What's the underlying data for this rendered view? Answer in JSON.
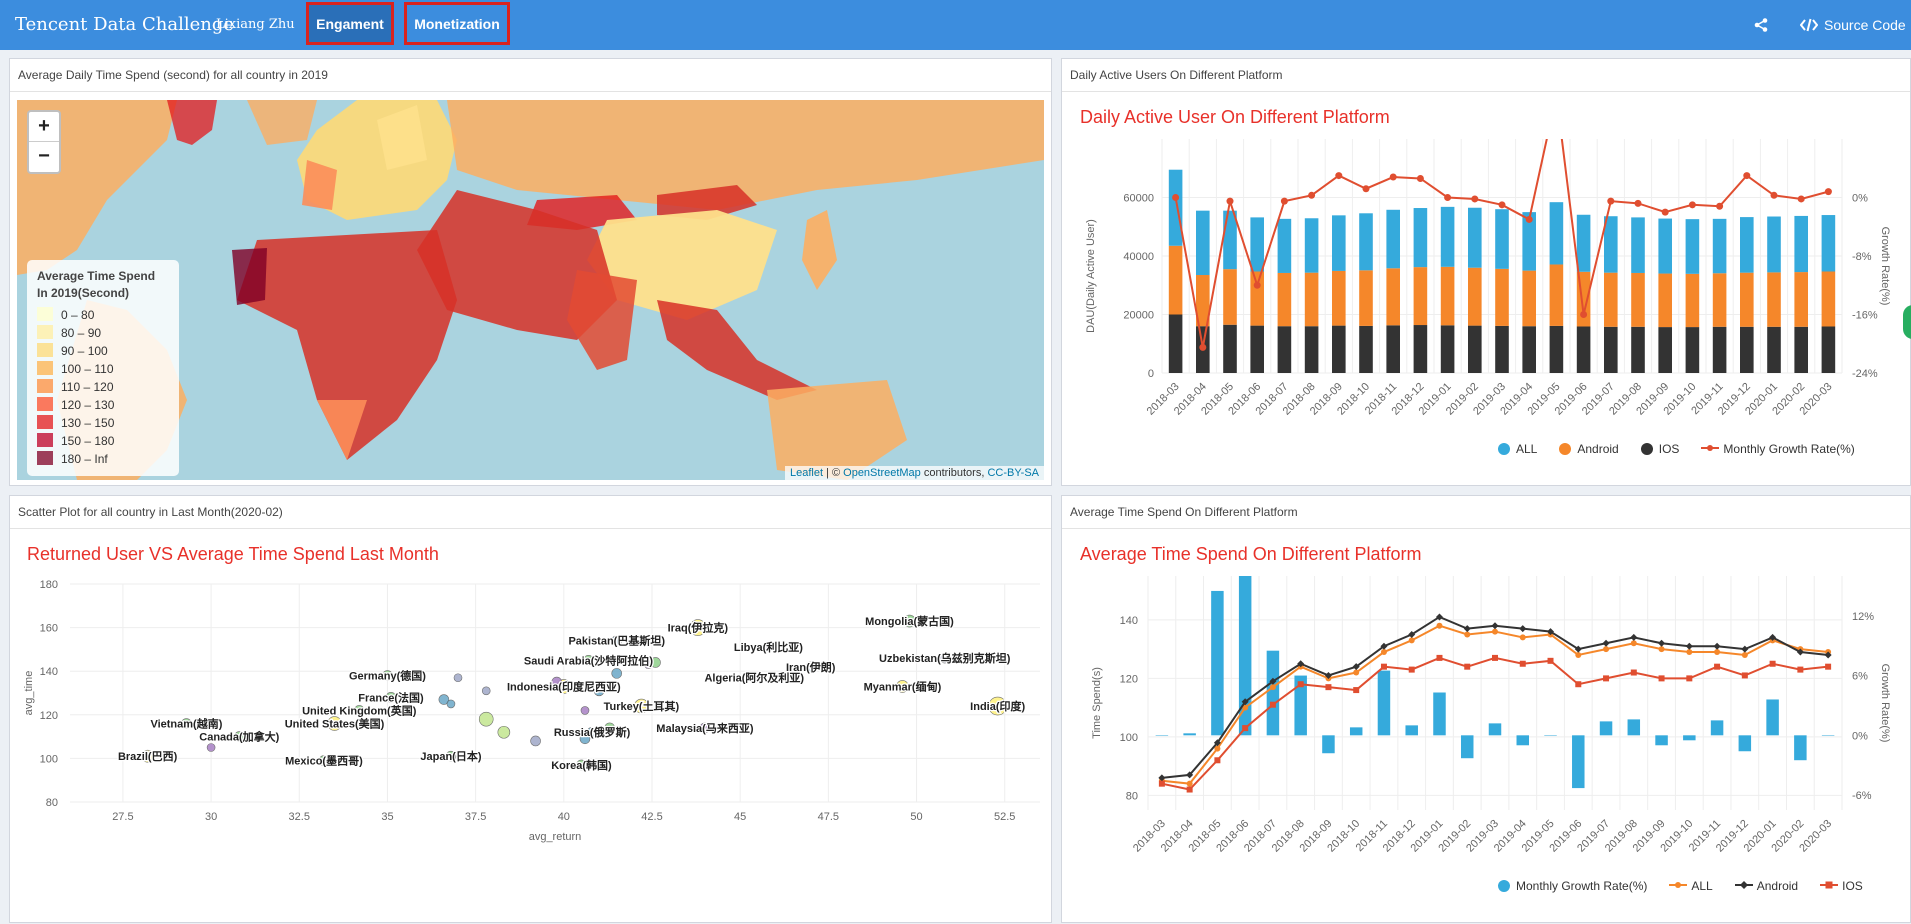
{
  "navbar": {
    "title": "Tencent Data Challenge",
    "user": "Lixiang Zhu",
    "tabs": [
      {
        "label": "Engament",
        "active": true
      },
      {
        "label": "Monetization",
        "active": false
      }
    ],
    "share_icon": "share-icon",
    "source_code_icon": "code-icon",
    "source_code_label": "Source Code"
  },
  "map_panel": {
    "header": "Average Daily Time Spend (second) for all country in 2019",
    "zoom_in": "+",
    "zoom_out": "−",
    "legend_title": "Average Time Spend In 2019(Second)",
    "legend_items": [
      {
        "label": "0 – 80",
        "color": "#ffffcc"
      },
      {
        "label": "80 – 90",
        "color": "#ffeda0"
      },
      {
        "label": "90 – 100",
        "color": "#fed976"
      },
      {
        "label": "100 – 110",
        "color": "#feb24c"
      },
      {
        "label": "110 – 120",
        "color": "#fd8d3c"
      },
      {
        "label": "120 – 130",
        "color": "#fc4e2a"
      },
      {
        "label": "130 – 150",
        "color": "#e31a1c"
      },
      {
        "label": "150 – 180",
        "color": "#bd0026"
      },
      {
        "label": "180 – Inf",
        "color": "#800026"
      }
    ],
    "attribution": {
      "leaflet": "Leaflet",
      "sep": " | © ",
      "osm": "OpenStreetMap",
      "mid": " contributors, ",
      "license": "CC-BY-SA"
    }
  },
  "dau_panel": {
    "header": "Daily Active Users On Different Platform",
    "chart_title": "Daily Active User On Different Platform",
    "chart_data": {
      "type": "bar",
      "stacked": true,
      "title": "Daily Active User On Different Platform",
      "categories": [
        "2018-03",
        "2018-04",
        "2018-05",
        "2018-06",
        "2018-07",
        "2018-08",
        "2018-09",
        "2018-10",
        "2018-11",
        "2018-12",
        "2019-01",
        "2019-02",
        "2019-03",
        "2019-04",
        "2019-05",
        "2019-06",
        "2019-07",
        "2019-08",
        "2019-09",
        "2019-10",
        "2019-11",
        "2019-12",
        "2020-01",
        "2020-02",
        "2020-03"
      ],
      "ylabel": "DAU(Daily Active User)",
      "y2label": "Growth Rate(%)",
      "ylim": [
        0,
        80000
      ],
      "y2lim": [
        -24,
        8
      ],
      "yticks": [
        0,
        20000,
        40000,
        60000
      ],
      "y2ticks": [
        -24,
        -16,
        -8,
        0
      ],
      "y2tick_labels": [
        "-24%",
        "-16%",
        "-8%",
        "0%"
      ],
      "series": [
        {
          "name": "IOS",
          "color": "#333333",
          "values": [
            20000,
            16000,
            16500,
            16200,
            16000,
            16000,
            16200,
            16100,
            16300,
            16400,
            16300,
            16200,
            16100,
            16000,
            16100,
            15900,
            15800,
            15800,
            15700,
            15700,
            15800,
            15800,
            15800,
            15800,
            15900
          ]
        },
        {
          "name": "Android",
          "values": [
            23500,
            17500,
            19000,
            18500,
            18200,
            18300,
            18700,
            19000,
            19500,
            19800,
            20000,
            19800,
            19500,
            19000,
            21000,
            18700,
            18500,
            18400,
            18300,
            18200,
            18300,
            18500,
            18600,
            18700,
            18800
          ],
          "color": "#f5872a"
        },
        {
          "name": "ALL",
          "values": [
            26000,
            22000,
            20000,
            18500,
            18500,
            18600,
            19000,
            19500,
            20000,
            20200,
            20500,
            20500,
            20400,
            20000,
            21300,
            19500,
            19300,
            19000,
            18800,
            18700,
            18600,
            19000,
            19100,
            19200,
            19300
          ],
          "color": "#35aadc"
        }
      ],
      "line": {
        "name": "Monthly Growth Rate(%)",
        "color": "#e04e30",
        "values": [
          0,
          -20.5,
          -0.5,
          -12,
          -0.5,
          0.3,
          3,
          1.2,
          2.8,
          2.6,
          0,
          -0.2,
          -1,
          -3,
          14,
          -16,
          -0.5,
          -0.8,
          -2,
          -1,
          -1.2,
          3,
          0.3,
          -0.2,
          0.8
        ]
      }
    }
  },
  "scatter_panel": {
    "header": "Scatter Plot for all country in Last Month(2020-02)",
    "chart_title": "Returned User VS Average Time Spend Last Month",
    "chart_data": {
      "type": "scatter",
      "title": "Returned User VS Average Time Spend Last Month",
      "xlabel": "avg_return",
      "ylabel": "avg_time",
      "xlim": [
        26,
        53.5
      ],
      "ylim": [
        80,
        180
      ],
      "xticks": [
        27.5,
        30,
        32.5,
        35,
        37.5,
        40,
        42.5,
        45,
        47.5,
        50,
        52.5
      ],
      "yticks": [
        80,
        100,
        120,
        140,
        160,
        180
      ],
      "points": [
        {
          "label": "Iraq(伊拉克)",
          "x": 43.8,
          "y": 160,
          "color": "#fff27a",
          "r": 8
        },
        {
          "label": "Mongolia(蒙古国)",
          "x": 49.8,
          "y": 163,
          "color": "#8fd18a",
          "r": 6
        },
        {
          "label": "Libya(利比亚)",
          "x": 45.8,
          "y": 151,
          "color": "#a77fc4",
          "r": 5
        },
        {
          "label": "Pakistan(巴基斯坦)",
          "x": 41.5,
          "y": 154,
          "color": "#6aa8c7",
          "r": 5
        },
        {
          "label": "Saudi Arabia(沙特阿拉伯)",
          "x": 40.7,
          "y": 145,
          "color": "#8fd18a",
          "r": 5
        },
        {
          "label": "Algeria(阿尔及利亚)",
          "x": 45.4,
          "y": 137,
          "color": "#a77fc4",
          "r": 5
        },
        {
          "label": "Iran(伊朗)",
          "x": 47,
          "y": 142,
          "color": "#6aa8c7",
          "r": 5
        },
        {
          "label": "Uzbekistan(乌兹别克斯坦)",
          "x": 50.8,
          "y": 146,
          "color": "#9fa8c7",
          "r": 5
        },
        {
          "label": "Myanmar(缅甸)",
          "x": 49.6,
          "y": 133,
          "color": "#fff27a",
          "r": 6
        },
        {
          "label": "Germany(德国)",
          "x": 35,
          "y": 138,
          "color": "#8fd18a",
          "r": 5
        },
        {
          "label": "Indonesia(印度尼西亚)",
          "x": 40,
          "y": 133,
          "color": "#fff27a",
          "r": 7
        },
        {
          "label": "France(法国)",
          "x": 35.1,
          "y": 128,
          "color": "#8fd18a",
          "r": 5
        },
        {
          "label": "Turkey(土耳其)",
          "x": 42.2,
          "y": 124,
          "color": "#fff27a",
          "r": 7
        },
        {
          "label": "United Kingdom(英国)",
          "x": 34.2,
          "y": 122,
          "color": "#8fd18a",
          "r": 5
        },
        {
          "label": "India(印度)",
          "x": 52.3,
          "y": 124,
          "color": "#fff27a",
          "r": 9
        },
        {
          "label": "United States(美国)",
          "x": 33.5,
          "y": 116,
          "color": "#fff27a",
          "r": 7
        },
        {
          "label": "Vietnam(越南)",
          "x": 29.3,
          "y": 116,
          "color": "#8fd18a",
          "r": 5
        },
        {
          "label": "Malaysia(马来西亚)",
          "x": 44,
          "y": 114,
          "color": "#a77fc4",
          "r": 5
        },
        {
          "label": "Russia(俄罗斯)",
          "x": 40.8,
          "y": 112,
          "color": "#6aa8c7",
          "r": 5
        },
        {
          "label": "Canada(加拿大)",
          "x": 30.8,
          "y": 110,
          "color": "#8fd18a",
          "r": 5
        },
        {
          "label": "Brazil(巴西)",
          "x": 28.2,
          "y": 101,
          "color": "#fff27a",
          "r": 6
        },
        {
          "label": "Japan(日本)",
          "x": 36.8,
          "y": 101,
          "color": "#8fd18a",
          "r": 5
        },
        {
          "label": "Mexico(墨西哥)",
          "x": 33.2,
          "y": 99,
          "color": "#8fd18a",
          "r": 5
        },
        {
          "label": "Korea(韩国)",
          "x": 40.5,
          "y": 97,
          "color": "#8fd18a",
          "r": 5
        },
        {
          "label": "",
          "x": 30,
          "y": 105,
          "color": "#a77fc4",
          "r": 4
        },
        {
          "label": "",
          "x": 36.6,
          "y": 127,
          "color": "#6aa8c7",
          "r": 5
        },
        {
          "label": "",
          "x": 36.8,
          "y": 125,
          "color": "#6aa8c7",
          "r": 4
        },
        {
          "label": "",
          "x": 37.8,
          "y": 118,
          "color": "#c2e68f",
          "r": 7
        },
        {
          "label": "",
          "x": 38.3,
          "y": 112,
          "color": "#c2e68f",
          "r": 6
        },
        {
          "label": "",
          "x": 39.2,
          "y": 108,
          "color": "#9fa8c7",
          "r": 5
        },
        {
          "label": "",
          "x": 39.8,
          "y": 135,
          "color": "#a77fc4",
          "r": 5
        },
        {
          "label": "",
          "x": 40.6,
          "y": 122,
          "color": "#a77fc4",
          "r": 4
        },
        {
          "label": "",
          "x": 40.6,
          "y": 109,
          "color": "#6aa8c7",
          "r": 5
        },
        {
          "label": "",
          "x": 41,
          "y": 131,
          "color": "#6aa8c7",
          "r": 5
        },
        {
          "label": "",
          "x": 41.3,
          "y": 114,
          "color": "#8fd18a",
          "r": 5
        },
        {
          "label": "",
          "x": 41.5,
          "y": 139,
          "color": "#6aa8c7",
          "r": 5
        },
        {
          "label": "",
          "x": 42.4,
          "y": 143,
          "color": "#a77fc4",
          "r": 4
        },
        {
          "label": "",
          "x": 42.6,
          "y": 144,
          "color": "#8fd18a",
          "r": 5
        },
        {
          "label": "",
          "x": 37,
          "y": 137,
          "color": "#9fa8c7",
          "r": 4
        },
        {
          "label": "",
          "x": 37.8,
          "y": 131,
          "color": "#9fa8c7",
          "r": 4
        }
      ]
    }
  },
  "time_panel": {
    "header": "Average Time Spend On Different Platform",
    "chart_title": "Average Time Spend On Different Platform",
    "chart_data": {
      "type": "bar",
      "title": "Average Time Spend On Different Platform",
      "categories": [
        "2018-03",
        "2018-04",
        "2018-05",
        "2018-06",
        "2018-07",
        "2018-08",
        "2018-09",
        "2018-10",
        "2018-11",
        "2018-12",
        "2019-01",
        "2019-02",
        "2019-03",
        "2019-04",
        "2019-05",
        "2019-06",
        "2019-07",
        "2019-08",
        "2019-09",
        "2019-10",
        "2019-11",
        "2019-12",
        "2020-01",
        "2020-02",
        "2020-03"
      ],
      "ylabel": "Time Spend(s)",
      "y2label": "Growth Rate(%)",
      "ylim": [
        75,
        155
      ],
      "y2lim": [
        -7.5,
        16
      ],
      "yticks": [
        80,
        100,
        120,
        140
      ],
      "y2ticks": [
        -6,
        0,
        6,
        12
      ],
      "y2tick_labels": [
        "-6%",
        "0%",
        "6%",
        "12%"
      ],
      "bars": {
        "name": "Monthly Growth Rate(%)",
        "color": "#35aadc",
        "values": [
          0,
          0.2,
          14.5,
          16,
          8.5,
          6,
          -1.8,
          0.8,
          6.5,
          1,
          4.3,
          -2.3,
          1.2,
          -1,
          0,
          -5.3,
          1.4,
          1.6,
          -1,
          -0.5,
          1.5,
          -1.6,
          3.6,
          -2.5,
          0
        ]
      },
      "lines": [
        {
          "name": "ALL",
          "color": "#f5872a",
          "marker": "circle",
          "values": [
            85,
            84,
            96,
            110,
            117,
            124,
            120,
            122,
            129,
            133,
            138,
            135,
            136,
            134,
            135,
            128,
            130,
            132,
            130,
            129,
            129,
            128,
            133,
            130,
            129
          ]
        },
        {
          "name": "Android",
          "color": "#333333",
          "marker": "diamond",
          "values": [
            86,
            87,
            98,
            112,
            119,
            125,
            121,
            124,
            131,
            135,
            141,
            137,
            138,
            137,
            136,
            130,
            132,
            134,
            132,
            131,
            131,
            130,
            134,
            129,
            128
          ]
        },
        {
          "name": "IOS",
          "color": "#e04e30",
          "marker": "square",
          "values": [
            84,
            82,
            92,
            103,
            111,
            118,
            117,
            116,
            124,
            123,
            127,
            124,
            127,
            125,
            126,
            118,
            120,
            122,
            120,
            120,
            124,
            121,
            125,
            123,
            124
          ]
        }
      ]
    }
  }
}
